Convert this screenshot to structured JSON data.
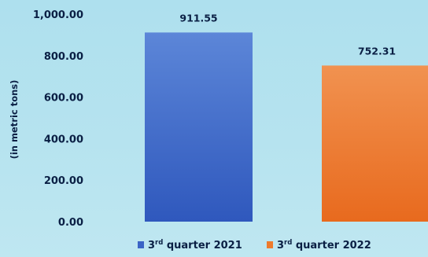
{
  "chart_data": {
    "type": "bar",
    "categories": [
      "3rd quarter 2021",
      "3rd quarter 2022"
    ],
    "values": [
      911.55,
      752.31
    ],
    "value_labels": [
      "911.55",
      "752.31"
    ],
    "ylabel": "(in metric tons)",
    "ylim": [
      0,
      1000
    ],
    "yticks": [
      "0.00",
      "200.00",
      "400.00",
      "600.00",
      "800.00",
      "1,000.00"
    ],
    "legend": [
      {
        "prefix": "3",
        "sup": "rd",
        "suffix": " quarter 2021",
        "color": "#3b64c6"
      },
      {
        "prefix": "3",
        "sup": "rd",
        "suffix": " quarter 2022",
        "color": "#ee7a2c"
      }
    ],
    "legend_position": "bottom",
    "grid": false
  }
}
